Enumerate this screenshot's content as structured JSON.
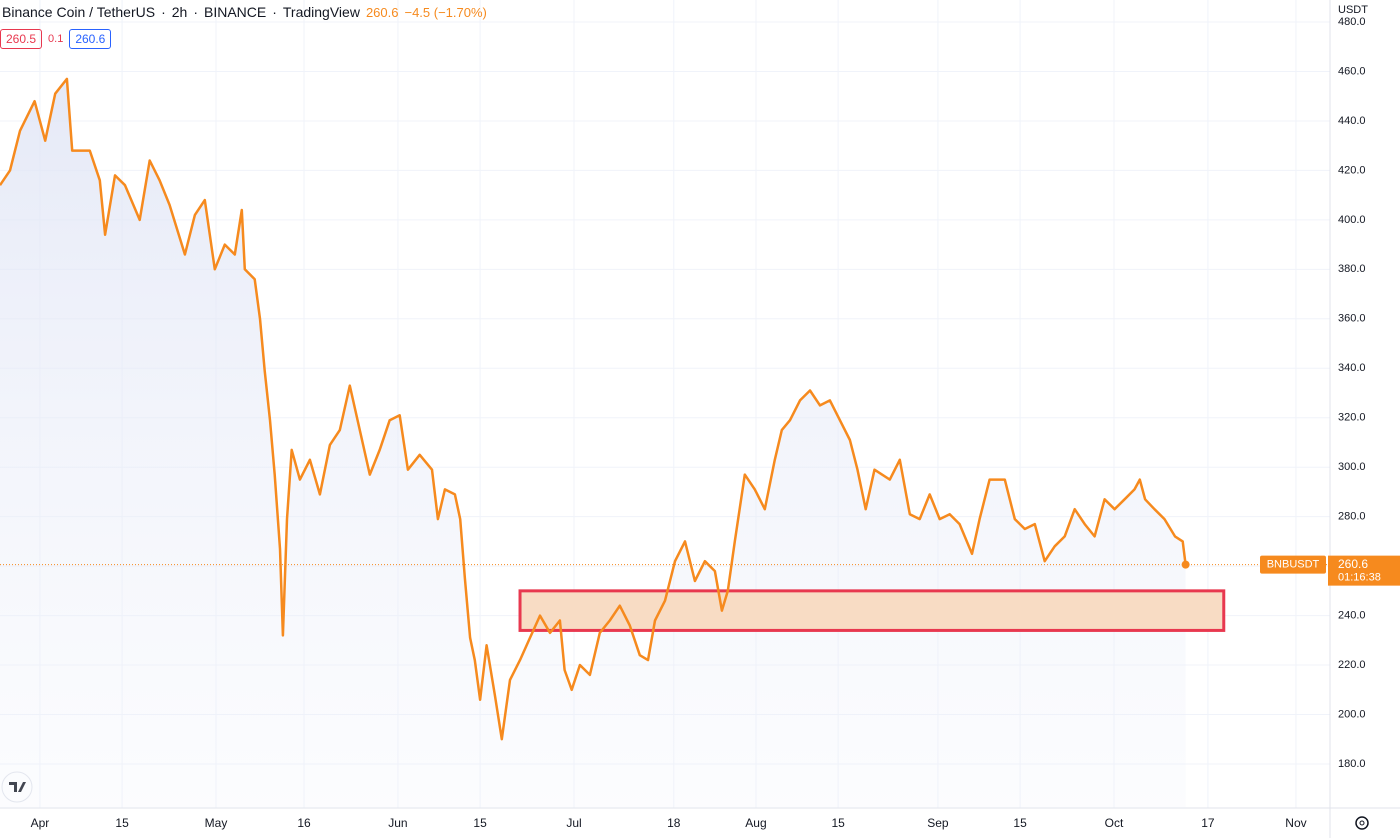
{
  "header": {
    "symbol": "Binance Coin / TetherUS",
    "interval": "2h",
    "exchange": "BINANCE",
    "source": "TradingView",
    "change": "−4.5 (−1.70%)",
    "bid": "260.5",
    "spread": "0.1",
    "ask": "260.6",
    "currency": "USDT",
    "countdown": "01:16:38"
  },
  "chart_data": {
    "type": "area",
    "last_price": 260.6,
    "color": "#f68a1e",
    "grid": true,
    "x": [
      -6.8,
      -5.1,
      -3.4,
      -0.9,
      0.9,
      2.6,
      4.6,
      5.5,
      8.5,
      10.2,
      11.1,
      12.8,
      14.5,
      17.0,
      18.7,
      20.4,
      22.1,
      24.7,
      26.4,
      28.1,
      29.8,
      31.5,
      33.2,
      34.4,
      34.9,
      36.6,
      37.5,
      38.3,
      39.2,
      40.0,
      40.9,
      41.4,
      42.1,
      42.9,
      44.3,
      46.0,
      47.7,
      49.4,
      51.1,
      52.8,
      54.5,
      56.2,
      57.9,
      59.6,
      61.3,
      62.7,
      64.7,
      66.8,
      67.8,
      69.0,
      70.7,
      71.6,
      72.4,
      73.3,
      74.1,
      75.0,
      76.1,
      77.5,
      78.7,
      80.1,
      81.8,
      83.5,
      85.2,
      86.9,
      88.6,
      89.4,
      90.6,
      92.0,
      93.7,
      95.4,
      97.1,
      98.8,
      100.5,
      102.2,
      103.6,
      104.8,
      106.5,
      108.2,
      109.9,
      111.6,
      113.3,
      115.0,
      116.2,
      117.2,
      118.4,
      120.1,
      121.8,
      123.5,
      125.2,
      126.4,
      127.8,
      129.5,
      131.2,
      132.9,
      134.6,
      136.3,
      138.0,
      139.3,
      140.7,
      142.2,
      144.8,
      146.5,
      148.2,
      149.9,
      151.6,
      153.3,
      155.0,
      156.7,
      158.8,
      160.1,
      161.8,
      164.4,
      166.1,
      167.8,
      169.5,
      171.2,
      172.9,
      174.6,
      176.3,
      178.0,
      179.7,
      181.4,
      183.1,
      184.8,
      186.5,
      187.4,
      188.3,
      189.9,
      191.6,
      193.4,
      194.7,
      195.2
    ],
    "series": [
      {
        "name": "BNBUSDT",
        "color": "#f68a1e",
        "values": [
          414,
          420,
          436,
          448,
          432,
          451,
          457,
          428,
          428,
          416,
          394,
          418,
          414,
          400,
          424,
          416,
          406,
          386,
          402,
          408,
          380,
          390,
          386,
          404,
          380,
          376,
          360,
          339,
          319,
          297,
          267,
          232,
          279,
          307,
          295,
          303,
          289,
          309,
          315,
          333,
          315,
          297,
          307,
          319,
          321,
          299,
          305,
          299,
          279,
          291,
          289,
          279,
          255,
          231,
          222,
          206,
          228,
          208,
          190,
          214,
          222,
          231,
          240,
          233,
          238,
          218,
          210,
          220,
          216,
          233,
          238,
          244,
          236,
          224,
          222,
          238,
          246,
          262,
          270,
          254,
          262,
          258,
          242,
          250,
          270,
          297,
          291,
          283,
          303,
          315,
          319,
          327,
          331,
          325,
          327,
          319,
          311,
          299,
          283,
          299,
          295,
          303,
          281,
          279,
          289,
          279,
          281,
          277,
          265,
          279,
          295,
          295,
          279,
          275,
          277,
          262,
          268,
          272,
          283,
          277,
          272,
          287,
          283,
          287,
          291,
          295,
          287,
          283,
          279,
          272,
          270,
          260.6
        ]
      }
    ],
    "zone": {
      "xlim": [
        81.8,
        201.7
      ],
      "ylim": [
        234,
        250
      ],
      "color": "#f8dcc4",
      "border": "#e8384f"
    },
    "xlim": [
      -6.8,
      219.8
    ],
    "ylim": [
      162.2,
      488.9
    ],
    "xticks": [
      {
        "value": 0,
        "label": "Apr"
      },
      {
        "value": 14,
        "label": "15"
      },
      {
        "value": 30,
        "label": "May"
      },
      {
        "value": 45,
        "label": "16"
      },
      {
        "value": 61,
        "label": "Jun"
      },
      {
        "value": 75,
        "label": "15"
      },
      {
        "value": 91,
        "label": "Jul"
      },
      {
        "value": 108,
        "label": "18"
      },
      {
        "value": 122,
        "label": "Aug"
      },
      {
        "value": 136,
        "label": "15"
      },
      {
        "value": 153,
        "label": "Sep"
      },
      {
        "value": 167,
        "label": "15"
      },
      {
        "value": 183,
        "label": "Oct"
      },
      {
        "value": 199,
        "label": "17"
      },
      {
        "value": 214,
        "label": "Nov"
      }
    ],
    "yticks": [
      {
        "value": 180,
        "label": "180.0"
      },
      {
        "value": 200,
        "label": "200.0"
      },
      {
        "value": 220,
        "label": "220.0"
      },
      {
        "value": 240,
        "label": "240.0"
      },
      {
        "value": 260,
        "label": "260.0"
      },
      {
        "value": 280,
        "label": "280.0"
      },
      {
        "value": 300,
        "label": "300.0"
      },
      {
        "value": 320,
        "label": "320.0"
      },
      {
        "value": 340,
        "label": "340.0"
      },
      {
        "value": 360,
        "label": "360.0"
      },
      {
        "value": 380,
        "label": "380.0"
      },
      {
        "value": 400,
        "label": "400.0"
      },
      {
        "value": 420,
        "label": "420.0"
      },
      {
        "value": 440,
        "label": "440.0"
      },
      {
        "value": 460,
        "label": "460.0"
      },
      {
        "value": 480,
        "label": "480.0"
      }
    ]
  }
}
